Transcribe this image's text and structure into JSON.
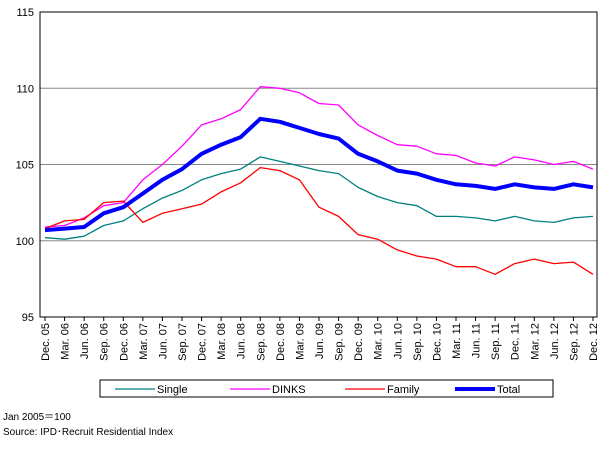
{
  "chart_data": {
    "type": "line",
    "categories": [
      "Dec. 05",
      "Mar. 06",
      "Jun. 06",
      "Sep. 06",
      "Dec. 06",
      "Mar. 07",
      "Jun. 07",
      "Sep. 07",
      "Dec. 07",
      "Mar. 08",
      "Jun. 08",
      "Sep. 08",
      "Dec. 08",
      "Mar. 09",
      "Jun. 09",
      "Sep. 09",
      "Dec. 09",
      "Mar. 10",
      "Jun. 10",
      "Sep. 10",
      "Dec. 10",
      "Mar. 11",
      "Jun. 11",
      "Sep. 11",
      "Dec. 11",
      "Mar. 12",
      "Jun. 12",
      "Sep. 12",
      "Dec. 12"
    ],
    "series": [
      {
        "name": "Single",
        "color": "#008080",
        "width": 1.3,
        "values": [
          100.2,
          100.1,
          100.3,
          101.0,
          101.3,
          102.1,
          102.8,
          103.3,
          104.0,
          104.4,
          104.7,
          105.5,
          105.2,
          104.9,
          104.6,
          104.4,
          103.5,
          102.9,
          102.5,
          102.3,
          101.6,
          101.6,
          101.5,
          101.3,
          101.6,
          101.3,
          101.2,
          101.5,
          101.6
        ]
      },
      {
        "name": "DINKS",
        "color": "#ff00ff",
        "width": 1.3,
        "values": [
          100.9,
          101.0,
          101.5,
          102.3,
          102.5,
          104.0,
          105.0,
          106.2,
          107.6,
          108.0,
          108.6,
          110.1,
          110.0,
          109.7,
          109.0,
          108.9,
          107.6,
          106.9,
          106.3,
          106.2,
          105.7,
          105.6,
          105.1,
          104.9,
          105.5,
          105.3,
          105.0,
          105.2,
          104.7
        ]
      },
      {
        "name": "Family",
        "color": "#ff0000",
        "width": 1.3,
        "values": [
          100.8,
          101.3,
          101.4,
          102.5,
          102.6,
          101.2,
          101.8,
          102.1,
          102.4,
          103.2,
          103.8,
          104.8,
          104.6,
          104.0,
          102.2,
          101.6,
          100.4,
          100.1,
          99.4,
          99.0,
          98.8,
          98.3,
          98.3,
          97.8,
          98.5,
          98.8,
          98.5,
          98.6,
          97.8
        ]
      },
      {
        "name": "Total",
        "color": "#0000ff",
        "width": 4,
        "values": [
          100.7,
          100.8,
          100.9,
          101.8,
          102.2,
          103.1,
          104.0,
          104.7,
          105.7,
          106.3,
          106.8,
          108.0,
          107.8,
          107.4,
          107.0,
          106.7,
          105.7,
          105.2,
          104.6,
          104.4,
          104.0,
          103.7,
          103.6,
          103.4,
          103.7,
          103.5,
          103.4,
          103.7,
          103.5
        ]
      }
    ],
    "ylim": [
      95,
      115
    ],
    "yticks": [
      95,
      100,
      105,
      110,
      115
    ],
    "grid": true,
    "notes": [
      "Jan 2005＝100",
      "Source: IPD･Recruit Residential Index"
    ]
  }
}
